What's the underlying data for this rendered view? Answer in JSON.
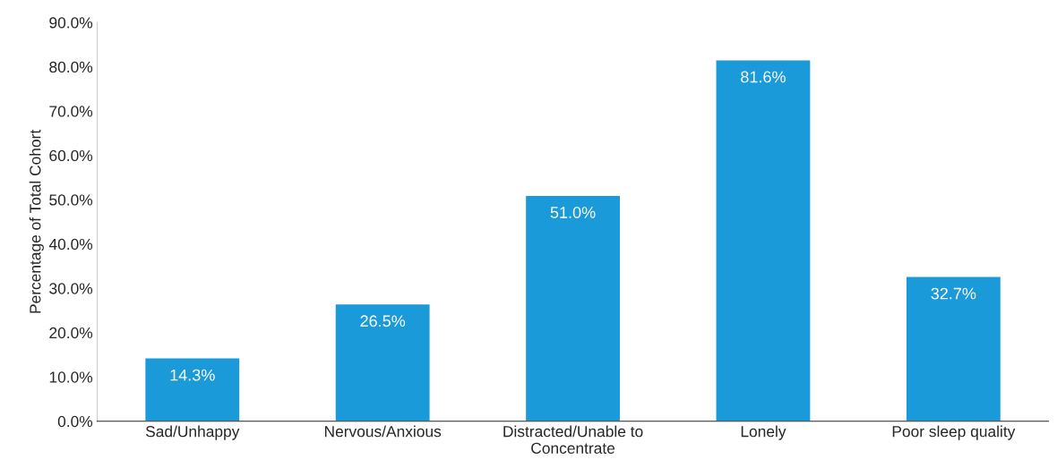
{
  "chart_data": {
    "type": "bar",
    "ylabel": "Percentage of Total Cohort",
    "categories": [
      "Sad/Unhappy",
      "Nervous/Anxious",
      "Distracted/Unable to\nConcentrate",
      "Lonely",
      "Poor sleep quality"
    ],
    "values": [
      14.3,
      26.5,
      51.0,
      81.6,
      32.7
    ],
    "value_labels": [
      "14.3%",
      "26.5%",
      "51.0%",
      "81.6%",
      "32.7%"
    ],
    "color": "#1a9ad9",
    "ylim": [
      0,
      90
    ],
    "yticks": [
      {
        "value": 0,
        "label": "0.0%"
      },
      {
        "value": 10,
        "label": "10.0%"
      },
      {
        "value": 20,
        "label": "20.0%"
      },
      {
        "value": 30,
        "label": "30.0%"
      },
      {
        "value": 40,
        "label": "40.0%"
      },
      {
        "value": 50,
        "label": "50.0%"
      },
      {
        "value": 60,
        "label": "60.0%"
      },
      {
        "value": 70,
        "label": "70.0%"
      },
      {
        "value": 80,
        "label": "80.0%"
      },
      {
        "value": 90,
        "label": "90.0%"
      }
    ],
    "grid": false,
    "legend": false
  }
}
